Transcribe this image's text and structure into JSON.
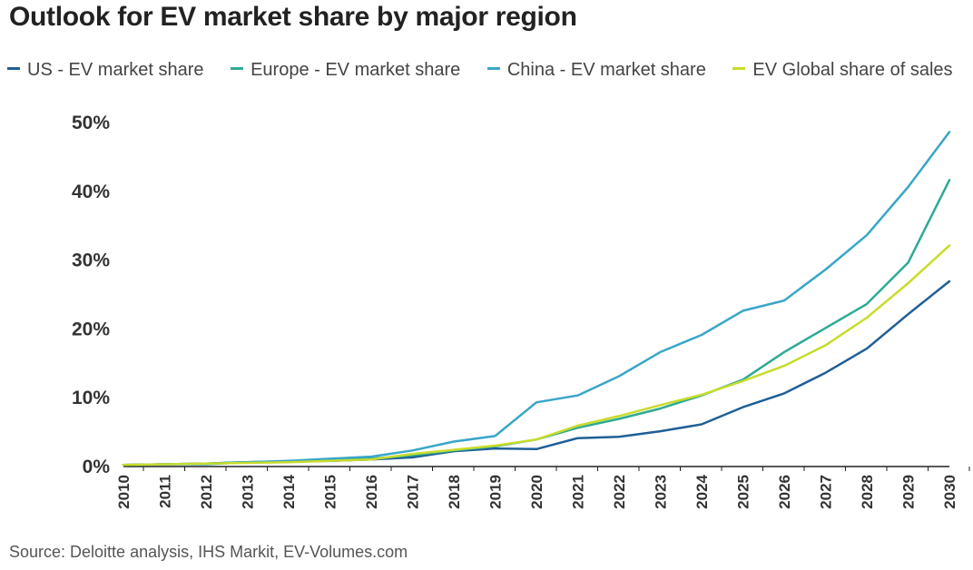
{
  "chart_data": {
    "type": "line",
    "title": "Outlook for EV market share by major region",
    "source": "Source: Deloitte analysis, IHS Markit, EV-Volumes.com",
    "xlabel": "",
    "ylabel": "",
    "ylim": [
      0,
      50
    ],
    "yticks": [
      "0%",
      "10%",
      "20%",
      "30%",
      "40%",
      "50%"
    ],
    "ytick_values": [
      0,
      10,
      20,
      30,
      40,
      50
    ],
    "categories": [
      "2010",
      "2011",
      "2012",
      "2013",
      "2014",
      "2015",
      "2016",
      "2017",
      "2018",
      "2019",
      "2020",
      "2021",
      "2022",
      "2023",
      "2024",
      "2025",
      "2026",
      "2027",
      "2028",
      "2029",
      "2030"
    ],
    "series": [
      {
        "name": "US - EV market share",
        "color": "#1f5f96",
        "values": [
          0.1,
          0.2,
          0.3,
          0.5,
          0.6,
          0.7,
          0.9,
          1.2,
          2.1,
          2.5,
          2.4,
          4.0,
          4.2,
          5.0,
          6.0,
          8.5,
          10.5,
          13.5,
          17.0,
          22.0,
          26.8
        ]
      },
      {
        "name": "Europe - EV market share",
        "color": "#2faa94",
        "values": [
          0.1,
          0.2,
          0.3,
          0.5,
          0.6,
          0.8,
          1.0,
          1.5,
          2.2,
          2.8,
          3.8,
          5.5,
          6.8,
          8.3,
          10.2,
          12.5,
          16.5,
          20.0,
          23.5,
          29.5,
          41.5
        ]
      },
      {
        "name": "China - EV market share",
        "color": "#3aa6c8",
        "values": [
          0.1,
          0.2,
          0.2,
          0.5,
          0.7,
          1.0,
          1.3,
          2.2,
          3.5,
          4.3,
          9.2,
          10.2,
          13.0,
          16.5,
          19.0,
          22.5,
          24.0,
          28.5,
          33.5,
          40.5,
          48.5
        ]
      },
      {
        "name": "EV Global share of sales",
        "color": "#c8dc2a",
        "values": [
          0.1,
          0.2,
          0.3,
          0.4,
          0.5,
          0.7,
          0.9,
          1.7,
          2.3,
          2.9,
          3.8,
          5.8,
          7.2,
          8.8,
          10.3,
          12.3,
          14.5,
          17.5,
          21.5,
          26.5,
          32.0
        ]
      }
    ]
  }
}
